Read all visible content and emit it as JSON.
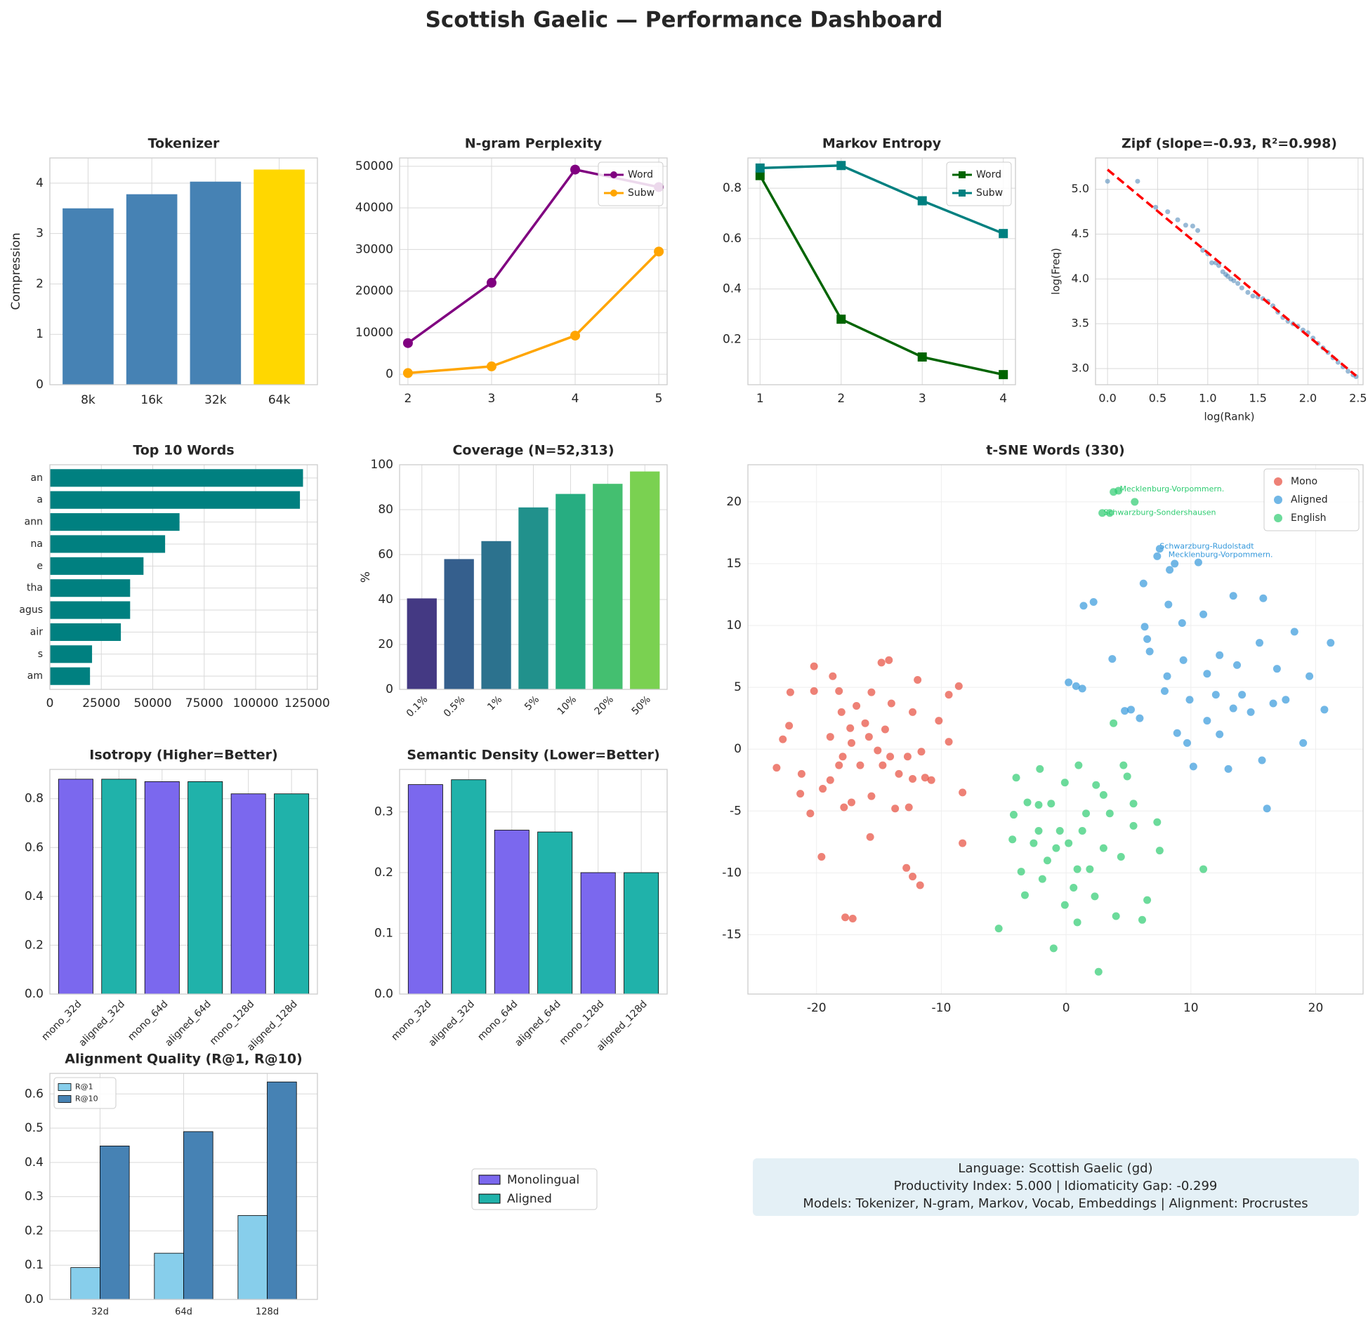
{
  "title": "Scottish Gaelic — Performance Dashboard",
  "chart_data": [
    {
      "type": "bar",
      "title": "Tokenizer",
      "ylabel": "Compression",
      "categories": [
        "8k",
        "16k",
        "32k",
        "64k"
      ],
      "values": [
        3.5,
        3.78,
        4.03,
        4.27
      ],
      "colors": [
        "#4682b4",
        "#4682b4",
        "#4682b4",
        "#ffd700"
      ],
      "ylim": [
        0,
        4.5
      ],
      "yticks": [
        0,
        1,
        2,
        3,
        4
      ],
      "grid": true
    },
    {
      "type": "line",
      "title": "N-gram Perplexity",
      "x": [
        2,
        3,
        4,
        5
      ],
      "xlim": [
        1.9,
        5.1
      ],
      "xticks": [
        2,
        3,
        4,
        5
      ],
      "ylim": [
        -2500,
        52000
      ],
      "yticks": [
        0,
        10000,
        20000,
        30000,
        40000,
        50000
      ],
      "grid": true,
      "legend": "upper right",
      "series": [
        {
          "name": "Word",
          "color": "#800080",
          "marker": "circle",
          "values": [
            7500,
            22000,
            49200,
            45000
          ]
        },
        {
          "name": "Subw",
          "color": "#ffa500",
          "marker": "circle",
          "values": [
            300,
            1900,
            9300,
            29500
          ]
        }
      ]
    },
    {
      "type": "line",
      "title": "Markov Entropy",
      "x": [
        1,
        2,
        3,
        4
      ],
      "xlim": [
        0.85,
        4.15
      ],
      "xticks": [
        1,
        2,
        3,
        4
      ],
      "ylim": [
        0.02,
        0.92
      ],
      "yticks": [
        0.2,
        0.4,
        0.6,
        0.8
      ],
      "grid": true,
      "legend": "upper right",
      "series": [
        {
          "name": "Word",
          "color": "#006400",
          "marker": "square",
          "values": [
            0.85,
            0.28,
            0.13,
            0.06
          ]
        },
        {
          "name": "Subw",
          "color": "#008080",
          "marker": "square",
          "values": [
            0.88,
            0.89,
            0.75,
            0.62
          ]
        }
      ]
    },
    {
      "type": "scatter",
      "title": "Zipf (slope=-0.93, R²=0.998)",
      "xlabel": "log(Rank)",
      "ylabel": "log(Freq)",
      "xlim": [
        -0.12,
        2.55
      ],
      "ylim": [
        2.82,
        5.35
      ],
      "xticks": [
        {
          "value": 0,
          "label": "0.0"
        },
        0.5,
        {
          "value": 1,
          "label": "1.0"
        },
        1.5,
        {
          "value": 2,
          "label": "2.0"
        },
        2.5
      ],
      "yticks": [
        {
          "value": 3,
          "label": "3.0"
        },
        3.5,
        {
          "value": 4,
          "label": "4.0"
        },
        4.5,
        {
          "value": 5,
          "label": "5.0"
        }
      ],
      "grid": true,
      "points": {
        "color": "#4682b4",
        "x": [
          0,
          0.3,
          0.48,
          0.6,
          0.7,
          0.78,
          0.85,
          0.9,
          0.95,
          1.0,
          1.04,
          1.08,
          1.11,
          1.15,
          1.18,
          1.2,
          1.23,
          1.26,
          1.3,
          1.34,
          1.4,
          1.45,
          1.5,
          1.55,
          1.6,
          1.65,
          1.7,
          1.75,
          1.8,
          1.85,
          1.9,
          1.95,
          2.0,
          2.05,
          2.1,
          2.15,
          2.2,
          2.25,
          2.3,
          2.35,
          2.4,
          2.45,
          2.48
        ],
        "y": [
          5.09,
          5.09,
          4.8,
          4.75,
          4.66,
          4.6,
          4.59,
          4.54,
          4.32,
          4.28,
          4.18,
          4.18,
          4.15,
          4.08,
          4.05,
          4.03,
          4.0,
          3.98,
          3.95,
          3.9,
          3.85,
          3.81,
          3.8,
          3.78,
          3.75,
          3.7,
          3.63,
          3.57,
          3.53,
          3.5,
          3.47,
          3.43,
          3.4,
          3.34,
          3.28,
          3.23,
          3.18,
          3.12,
          3.07,
          3.02,
          2.97,
          2.93,
          2.91
        ]
      },
      "fit": {
        "color": "#ff0000",
        "x": [
          0,
          2.48
        ],
        "y": [
          5.22,
          2.92
        ]
      }
    },
    {
      "type": "barh",
      "title": "Top 10 Words",
      "categories": [
        "an",
        "a",
        "ann",
        "na",
        "e",
        "tha",
        "agus",
        "air",
        "s",
        "am"
      ],
      "values": [
        123000,
        121500,
        63000,
        56000,
        45500,
        39000,
        39000,
        34500,
        20500,
        19500
      ],
      "color": "#008080",
      "xlim": [
        0,
        130000
      ],
      "xticks": [
        0,
        25000,
        50000,
        75000,
        100000,
        125000
      ],
      "grid": true
    },
    {
      "type": "bar",
      "title": "Coverage (N=52,313)",
      "ylabel": "%",
      "categories": [
        "0.1%",
        "0.5%",
        "1%",
        "5%",
        "10%",
        "20%",
        "50%"
      ],
      "values": [
        40.5,
        58,
        66,
        81,
        87,
        91.5,
        97
      ],
      "colors": [
        "#443983",
        "#355f8d",
        "#2c728e",
        "#21918c",
        "#27ad81",
        "#44bf70",
        "#7ad151"
      ],
      "ylim": [
        0,
        100
      ],
      "yticks": [
        0,
        20,
        40,
        60,
        80,
        100
      ],
      "grid": true,
      "rotate_labels": true
    },
    {
      "type": "scatter",
      "title": "t-SNE Words (330)",
      "xlim": [
        -25.5,
        23.8
      ],
      "ylim": [
        -19.8,
        23
      ],
      "xticks": [
        -20,
        -10,
        0,
        10,
        20
      ],
      "yticks": [
        -15,
        -10,
        -5,
        0,
        5,
        10,
        15,
        20
      ],
      "grid": true,
      "legend": "upper right",
      "series": [
        {
          "name": "Mono",
          "color": "#e74c3c",
          "x": [
            -20.2,
            -22.1,
            -20.2,
            -18.2,
            -16.8,
            -15.6,
            -14.8,
            -14.2,
            -11.9,
            -9.4,
            -8.6,
            -10.2,
            -9.4,
            -12.3,
            -22.2,
            -22.7,
            -23.2,
            -21.2,
            -21.3,
            -20.5,
            -19.5,
            -18.9,
            -17.9,
            -17.2,
            -15.8,
            -15.1,
            -14.1,
            -13.4,
            -12.3,
            -11.3,
            -10.8,
            -12.6,
            -15.6,
            -17.2,
            -17.8,
            -13.7,
            -8.3,
            -15.7,
            -19.6,
            -8.3,
            -12.8,
            -12.3,
            -11.7,
            -17.7,
            -17.1,
            -16.1,
            -14.5,
            -17.3,
            -18.9,
            -18.2,
            -16.5,
            -14.7,
            -12.7,
            -11.6,
            -18.0,
            -14.0,
            -18.7
          ],
          "y": [
            6.7,
            4.6,
            4.7,
            4.7,
            3.5,
            4.6,
            7.0,
            7.2,
            5.6,
            4.4,
            5.1,
            2.3,
            0.6,
            3.0,
            1.9,
            0.8,
            -1.5,
            -2.0,
            -3.6,
            -5.2,
            -3.2,
            -2.5,
            -0.6,
            0.5,
            1.0,
            -0.1,
            -0.6,
            -2.0,
            -2.4,
            -2.3,
            -2.5,
            -4.7,
            -3.8,
            -4.3,
            -4.7,
            -4.8,
            -3.5,
            -7.1,
            -8.7,
            -7.6,
            -9.6,
            -10.3,
            -11.0,
            -13.6,
            -13.7,
            2.1,
            1.6,
            1.7,
            1.0,
            -1.3,
            -1.3,
            -1.3,
            -0.6,
            -0.2,
            3.0,
            3.7,
            5.9
          ]
        },
        {
          "name": "Aligned",
          "color": "#3498db",
          "x": [
            0.2,
            0.8,
            1.3,
            1.4,
            2.2,
            3.7,
            4.7,
            5.2,
            5.9,
            6.2,
            6.3,
            6.5,
            6.7,
            7.3,
            7.5,
            8.3,
            8.7,
            8.2,
            8.1,
            7.9,
            8.9,
            9.3,
            9.4,
            9.7,
            9.9,
            10.2,
            11.0,
            11.3,
            12.0,
            12.3,
            13.0,
            13.4,
            14.1,
            14.8,
            15.5,
            15.8,
            15.7,
            16.1,
            16.9,
            17.6,
            18.3,
            19.0,
            19.5,
            20.7,
            21.2,
            10.6,
            12.3,
            13.4,
            11.3,
            13.7,
            16.6
          ],
          "y": [
            5.4,
            5.1,
            4.9,
            11.6,
            11.9,
            7.3,
            3.1,
            3.2,
            2.5,
            13.4,
            9.9,
            8.9,
            7.9,
            15.6,
            16.2,
            14.5,
            15.0,
            11.7,
            5.9,
            4.7,
            1.3,
            10.2,
            7.2,
            0.5,
            4.0,
            -1.4,
            10.9,
            6.1,
            4.4,
            1.2,
            -1.6,
            12.4,
            4.4,
            3.0,
            8.6,
            12.2,
            -0.9,
            -4.8,
            6.5,
            4.0,
            9.5,
            0.5,
            5.9,
            3.2,
            8.6,
            15.1,
            7.6,
            3.3,
            2.3,
            6.8,
            3.7
          ]
        },
        {
          "name": "English",
          "color": "#2ecc71",
          "x": [
            3.8,
            4.2,
            5.5,
            2.9,
            3.5,
            3.8,
            -4.0,
            -2.1,
            -3.1,
            -2.2,
            -1.2,
            -0.1,
            1.0,
            2.4,
            4.6,
            4.9,
            5.4,
            5.4,
            7.3,
            7.5,
            11.0,
            -4.2,
            -4.3,
            -3.6,
            -5.4,
            -3.3,
            -1.9,
            -1.0,
            0.9,
            2.6,
            4.0,
            6.5,
            6.1,
            1.9,
            0.2,
            1.3,
            -0.5,
            3.0,
            4.4,
            -1.5,
            0.6,
            2.3,
            -0.1,
            3.5,
            1.6,
            -2.2,
            3.0,
            0.9,
            -0.8,
            -2.6
          ],
          "y": [
            20.8,
            20.9,
            20.0,
            19.1,
            19.1,
            2.1,
            -2.3,
            -1.6,
            -4.3,
            -4.5,
            -4.4,
            -2.7,
            -1.3,
            -2.9,
            -1.3,
            -2.2,
            -4.4,
            -6.2,
            -5.9,
            -8.2,
            -9.7,
            -5.3,
            -7.3,
            -9.9,
            -14.5,
            -11.8,
            -10.5,
            -16.1,
            -14.0,
            -18.0,
            -13.5,
            -12.2,
            -13.8,
            -9.7,
            -7.6,
            -6.6,
            -6.6,
            -8.0,
            -8.7,
            -9.0,
            -11.2,
            -11.9,
            -12.6,
            -5.2,
            -5.2,
            -6.6,
            -3.7,
            -9.7,
            -8.0,
            -7.6
          ]
        }
      ],
      "annotations": [
        {
          "text": "Mecklenburg-Vorpommern.",
          "x": 4.3,
          "y": 21.0,
          "color": "#2ecc71"
        },
        {
          "text": "Schwarzburg-Sondershausen",
          "x": 3.0,
          "y": 19.1,
          "color": "#2ecc71"
        },
        {
          "text": "Schwarzburg-Rudolstadt",
          "x": 7.5,
          "y": 16.4,
          "color": "#3498db"
        },
        {
          "text": "Mecklenburg-Vorpommern.",
          "x": 8.2,
          "y": 15.7,
          "color": "#3498db"
        }
      ]
    },
    {
      "type": "bar",
      "title": "Isotropy (Higher=Better)",
      "categories": [
        "mono_32d",
        "aligned_32d",
        "mono_64d",
        "aligned_64d",
        "mono_128d",
        "aligned_128d"
      ],
      "values": [
        0.88,
        0.88,
        0.87,
        0.87,
        0.82,
        0.82
      ],
      "colors": [
        "#7b68ee",
        "#20b2aa",
        "#7b68ee",
        "#20b2aa",
        "#7b68ee",
        "#20b2aa"
      ],
      "ylim": [
        0,
        0.92
      ],
      "yticks": [
        {
          "value": 0,
          "label": "0.0"
        },
        0.2,
        0.4,
        0.6,
        0.8
      ],
      "grid": true,
      "rotate_labels": true
    },
    {
      "type": "bar",
      "title": "Semantic Density (Lower=Better)",
      "categories": [
        "mono_32d",
        "aligned_32d",
        "mono_64d",
        "aligned_64d",
        "mono_128d",
        "aligned_128d"
      ],
      "values": [
        0.345,
        0.353,
        0.27,
        0.267,
        0.2,
        0.2
      ],
      "colors": [
        "#7b68ee",
        "#20b2aa",
        "#7b68ee",
        "#20b2aa",
        "#7b68ee",
        "#20b2aa"
      ],
      "ylim": [
        0,
        0.37
      ],
      "yticks": [
        {
          "value": 0,
          "label": "0.0"
        },
        0.1,
        0.2,
        0.3
      ],
      "grid": true,
      "rotate_labels": true
    },
    {
      "type": "bar",
      "title": "Alignment Quality (R@1, R@10)",
      "categories": [
        "32d",
        "64d",
        "128d"
      ],
      "ylim": [
        0,
        0.66
      ],
      "yticks": [
        {
          "value": 0,
          "label": "0.0"
        },
        0.1,
        0.2,
        0.3,
        0.4,
        0.5,
        0.6
      ],
      "grid": true,
      "legend": "upper left",
      "series": [
        {
          "name": "R@1",
          "color": "#87ceeb",
          "values": [
            0.093,
            0.135,
            0.245
          ]
        },
        {
          "name": "R@10",
          "color": "#4682b4",
          "values": [
            0.448,
            0.49,
            0.635
          ]
        }
      ]
    }
  ],
  "legend_panel": {
    "entries": [
      {
        "name": "Monolingual",
        "color": "#7b68ee"
      },
      {
        "name": "Aligned",
        "color": "#20b2aa"
      }
    ]
  },
  "info_box": {
    "lines": [
      "Language: Scottish Gaelic (gd)",
      "Productivity Index: 5.000  |  Idiomaticity Gap: -0.299",
      "Models: Tokenizer, N-gram, Markov, Vocab, Embeddings  |  Alignment: Procrustes"
    ]
  }
}
